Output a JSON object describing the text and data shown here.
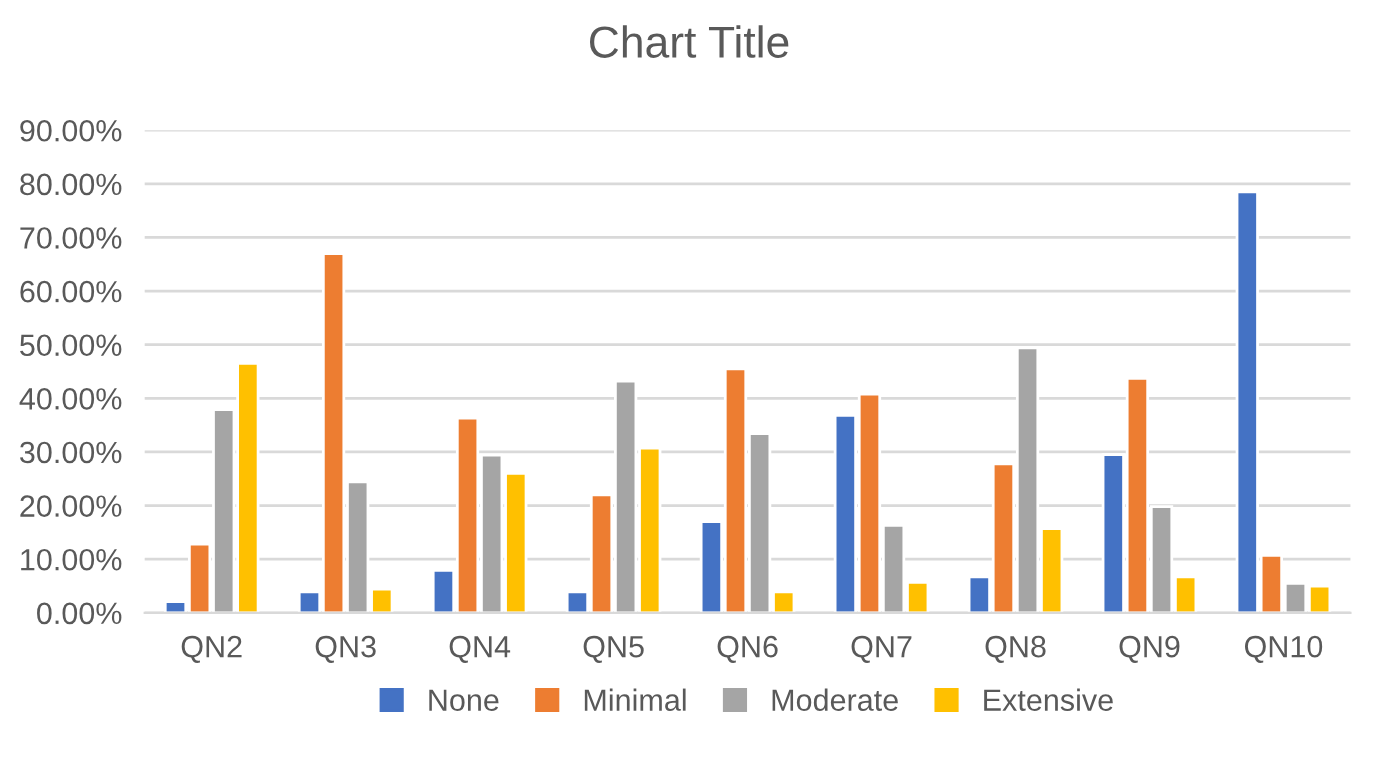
{
  "chart_data": {
    "type": "bar",
    "title": "Chart Title",
    "categories": [
      "QN2",
      "QN3",
      "QN4",
      "QN5",
      "QN6",
      "QN7",
      "QN8",
      "QN9",
      "QN10"
    ],
    "series": [
      {
        "name": "None",
        "color": "#4472c4",
        "values": [
          2.1,
          3.9,
          7.9,
          3.9,
          17.0,
          36.8,
          6.7,
          29.5,
          78.5
        ]
      },
      {
        "name": "Minimal",
        "color": "#ed7d31",
        "values": [
          12.8,
          67.0,
          36.3,
          22.0,
          45.5,
          40.8,
          27.8,
          43.7,
          10.7
        ]
      },
      {
        "name": "Moderate",
        "color": "#a5a5a5",
        "values": [
          37.9,
          24.4,
          29.4,
          43.2,
          33.4,
          16.3,
          49.4,
          19.8,
          5.5
        ]
      },
      {
        "name": "Extensive",
        "color": "#ffc000",
        "values": [
          46.5,
          4.4,
          26.0,
          30.7,
          3.9,
          5.7,
          15.7,
          6.7,
          5.0
        ]
      }
    ],
    "ylim": [
      0,
      90
    ],
    "yticks": [
      {
        "value": 0,
        "label": "0.00%"
      },
      {
        "value": 10,
        "label": "10.00%"
      },
      {
        "value": 20,
        "label": "20.00%"
      },
      {
        "value": 30,
        "label": "30.00%"
      },
      {
        "value": 40,
        "label": "40.00%"
      },
      {
        "value": 50,
        "label": "50.00%"
      },
      {
        "value": 60,
        "label": "60.00%"
      },
      {
        "value": 70,
        "label": "70.00%"
      },
      {
        "value": 80,
        "label": "80.00%"
      },
      {
        "value": 90,
        "label": "90.00%"
      }
    ],
    "grid": "y",
    "legend": "bottom"
  }
}
